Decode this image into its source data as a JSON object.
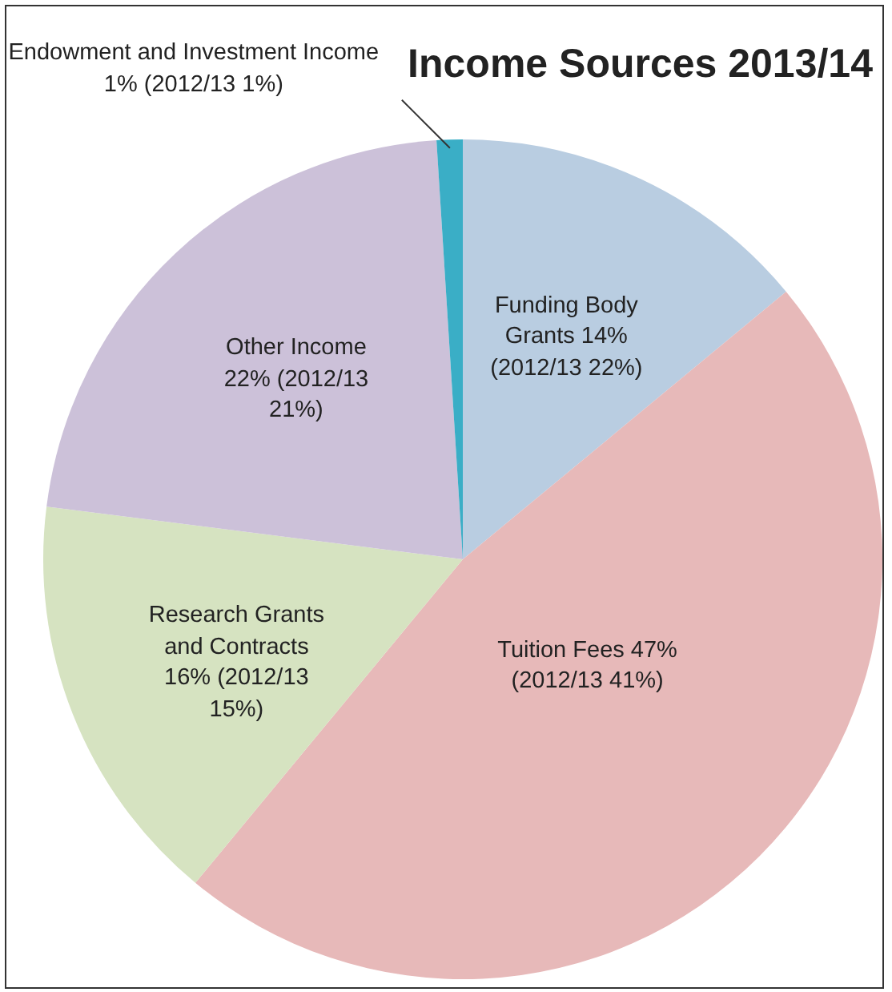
{
  "chart_data": {
    "type": "pie",
    "title": "Income Sources 2013/14",
    "categories": [
      "Funding Body Grants 14% (2012/13 22%)",
      "Tuition Fees 47% (2012/13 41%)",
      "Research Grants and Contracts 16% (2012/13 15%)",
      "Other Income 22% (2012/13 21%)",
      "Endowment and Investment Income 1% (2012/13 1%)"
    ],
    "values": [
      14,
      47,
      16,
      22,
      1
    ],
    "colors": [
      "#b9cde1",
      "#e7b9b9",
      "#d6e3c1",
      "#ccc1d9",
      "#3aaec6"
    ],
    "legend": false
  }
}
